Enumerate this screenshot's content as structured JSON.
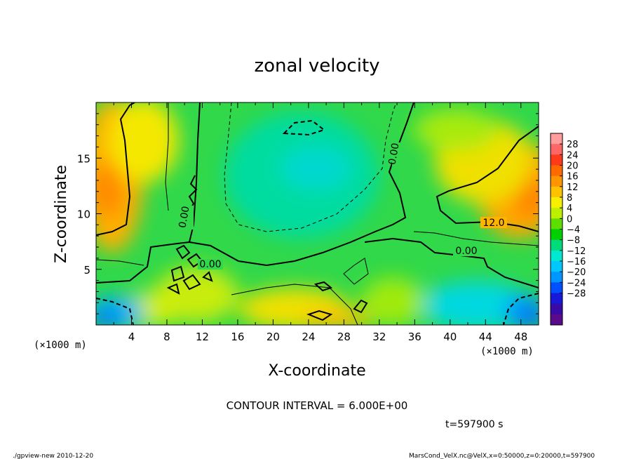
{
  "chart_data": {
    "type": "heatmap",
    "title": "zonal velocity",
    "xlabel": "X-coordinate",
    "ylabel": "Z-coordinate",
    "x_unit": "(×1000 m)",
    "y_unit": "(×1000 m)",
    "xlim": [
      0,
      50
    ],
    "ylim": [
      0,
      20
    ],
    "x_ticks": [
      "4",
      "8",
      "12",
      "16",
      "20",
      "24",
      "28",
      "32",
      "36",
      "40",
      "44",
      "48"
    ],
    "y_ticks": [
      "5",
      "10",
      "15"
    ],
    "colorbar_labels": [
      "28",
      "24",
      "20",
      "16",
      "12",
      "8",
      "4",
      "0",
      "−4",
      "−8",
      "−12",
      "−16",
      "−20",
      "−24",
      "−28"
    ],
    "colorbar_colors": [
      "#ff9c9c",
      "#ff6666",
      "#ff3a1a",
      "#ff6a00",
      "#ff9500",
      "#ffc200",
      "#f7ef00",
      "#bdf000",
      "#5ede00",
      "#00d000",
      "#00da7a",
      "#00e8d0",
      "#00c8ff",
      "#0096ff",
      "#0050ff",
      "#1818d8",
      "#3a0aa8",
      "#5a0a8a"
    ],
    "contour_interval": "CONTOUR INTERVAL = 6.000E+00",
    "contour_labels": [
      "0.00",
      "0.00",
      "0.00",
      "0.00",
      "12.0"
    ],
    "time_label": "t=597900 s",
    "footer_left": "./gpview-new  2010-12-20",
    "footer_right": "MarsCond_VelX.nc@VelX,x=0:50000,z=0:20000,t=597900"
  }
}
